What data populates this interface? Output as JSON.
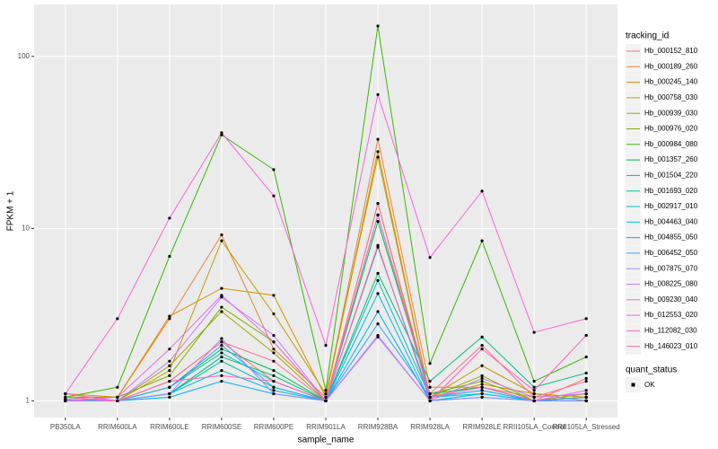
{
  "chart_data": {
    "type": "line",
    "x_label": "sample_name",
    "y_label": "FPKM + 1",
    "categories": [
      "PB350LA",
      "RRIM600LA",
      "RRIM600LE",
      "RRIM600SE",
      "RRIM600PE",
      "RRIM901LA",
      "RRIM928BA",
      "RRIM928LA",
      "RRIM928LE",
      "RRII105LA_Control",
      "RRII105LA_Stressed"
    ],
    "log_scale": true,
    "grid": true,
    "ylim": [
      0.8,
      200
    ],
    "yticks": [
      1,
      10,
      100
    ],
    "legend_title": "tracking_id",
    "legend_position": "right",
    "point_legend_title": "quant_status",
    "point_legend_label": "OK",
    "point_color": "#000000",
    "series": [
      {
        "name": "Hb_000152_810",
        "color": "#F8766D",
        "values": [
          1.02,
          1.0,
          1.3,
          2.2,
          1.3,
          1.0,
          12,
          1.05,
          1.2,
          1.0,
          1.35
        ]
      },
      {
        "name": "Hb_000189_260",
        "color": "#EA8331",
        "values": [
          1.05,
          1.05,
          3.0,
          9.2,
          2.0,
          1.05,
          33,
          1.2,
          1.2,
          1.05,
          1.1
        ]
      },
      {
        "name": "Hb_000245_140",
        "color": "#D89000",
        "values": [
          1.1,
          1.05,
          3.1,
          4.5,
          4.1,
          1.05,
          28,
          1.05,
          1.25,
          1.1,
          1.05
        ]
      },
      {
        "name": "Hb_000758_030",
        "color": "#C09B00",
        "values": [
          1.05,
          1.0,
          1.5,
          8.5,
          3.2,
          1.1,
          26,
          1.05,
          1.6,
          1.1,
          1.0
        ]
      },
      {
        "name": "Hb_000939_030",
        "color": "#A3A500",
        "values": [
          1.0,
          1.0,
          1.6,
          3.3,
          1.9,
          1.0,
          14,
          1.05,
          1.4,
          1.0,
          1.1
        ]
      },
      {
        "name": "Hb_000976_020",
        "color": "#7CAE00",
        "values": [
          1.05,
          1.05,
          1.4,
          3.5,
          2.2,
          1.0,
          12,
          1.1,
          1.3,
          1.0,
          1.05
        ]
      },
      {
        "name": "Hb_000984_080",
        "color": "#39B600",
        "values": [
          1.05,
          1.2,
          6.9,
          35,
          22,
          1.15,
          150,
          1.65,
          8.5,
          1.3,
          1.8
        ]
      },
      {
        "name": "Hb_001357_260",
        "color": "#00BB4E",
        "values": [
          1.0,
          1.0,
          1.2,
          2.0,
          1.5,
          1.0,
          11,
          1.1,
          1.2,
          1.0,
          1.05
        ]
      },
      {
        "name": "Hb_001504_220",
        "color": "#00BF7D",
        "values": [
          1.0,
          1.0,
          1.1,
          1.8,
          1.4,
          1.0,
          5.5,
          1.3,
          2.35,
          1.2,
          1.45
        ]
      },
      {
        "name": "Hb_001693_020",
        "color": "#00C1A3",
        "values": [
          1.02,
          1.0,
          1.1,
          1.7,
          1.2,
          1.0,
          7.8,
          1.05,
          1.15,
          1.0,
          1.05
        ]
      },
      {
        "name": "Hb_002917_010",
        "color": "#00BFC4",
        "values": [
          1.0,
          1.0,
          1.2,
          1.9,
          1.3,
          1.0,
          5,
          1.05,
          1.1,
          1.0,
          1.0
        ]
      },
      {
        "name": "Hb_004463_040",
        "color": "#00BAE0",
        "values": [
          1.0,
          1.0,
          1.1,
          1.5,
          1.15,
          1.0,
          4.2,
          1.0,
          1.1,
          1.0,
          1.0
        ]
      },
      {
        "name": "Hb_004855_050",
        "color": "#00B0F6",
        "values": [
          1.0,
          1.0,
          1.05,
          1.3,
          1.1,
          1.0,
          3.3,
          1.0,
          1.05,
          1.0,
          1.0
        ]
      },
      {
        "name": "Hb_006452_050",
        "color": "#35A2FF",
        "values": [
          1.0,
          1.0,
          1.2,
          2.1,
          1.2,
          1.0,
          2.8,
          1.05,
          1.15,
          1.0,
          1.05
        ]
      },
      {
        "name": "Hb_007875_070",
        "color": "#9590FF",
        "values": [
          1.0,
          1.0,
          1.1,
          2.3,
          1.1,
          1.0,
          2.4,
          1.0,
          1.05,
          1.0,
          1.0
        ]
      },
      {
        "name": "Hb_008225_080",
        "color": "#C77CFF",
        "values": [
          1.0,
          1.0,
          1.7,
          4.0,
          2.4,
          1.0,
          2.35,
          1.0,
          1.35,
          1.05,
          1.1
        ]
      },
      {
        "name": "Hb_009230_040",
        "color": "#E76BF3",
        "values": [
          1.0,
          1.05,
          2.0,
          4.1,
          2.2,
          1.0,
          12,
          1.05,
          1.2,
          1.0,
          1.15
        ]
      },
      {
        "name": "Hb_012553_020",
        "color": "#FA62DB",
        "values": [
          1.1,
          3.0,
          11.5,
          36,
          15.5,
          2.1,
          60,
          6.8,
          16.5,
          2.5,
          3.0
        ]
      },
      {
        "name": "Hb_112082_030",
        "color": "#FF62BC",
        "values": [
          1.1,
          1.0,
          1.3,
          1.4,
          1.3,
          1.0,
          8,
          1.0,
          2.0,
          1.15,
          2.4
        ]
      },
      {
        "name": "Hb_146023_010",
        "color": "#FF6C91",
        "values": [
          1.05,
          1.0,
          1.3,
          2.2,
          1.7,
          1.0,
          14,
          1.1,
          2.1,
          1.05,
          1.3
        ]
      }
    ]
  }
}
